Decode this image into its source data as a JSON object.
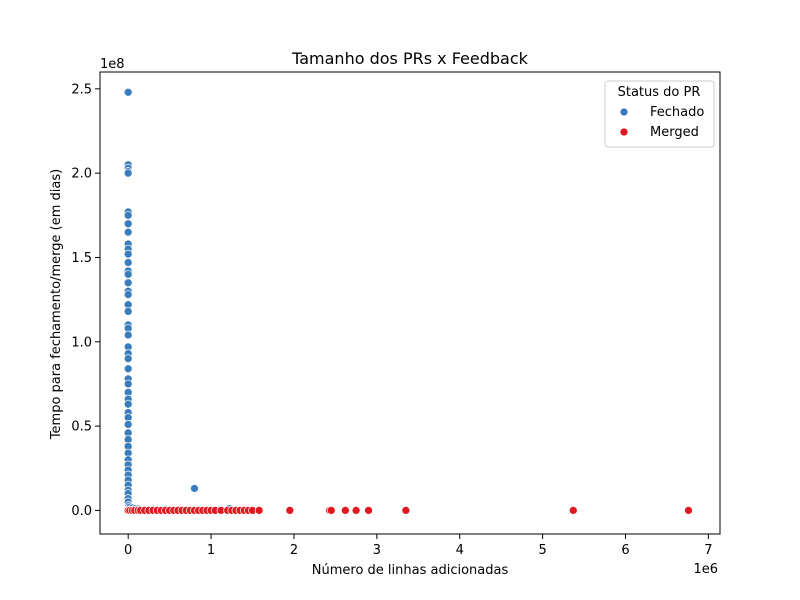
{
  "chart_data": {
    "type": "scatter",
    "title": "Tamanho dos PRs x Feedback",
    "xlabel": "Número de linhas adicionadas",
    "ylabel": "Tempo para fechamento/merge (em dias)",
    "x_multiplier": "1e6",
    "y_multiplier": "1e8",
    "xlim": [
      -0.34,
      7.14
    ],
    "ylim": [
      -0.14,
      2.6
    ],
    "x_ticks": [
      0,
      1,
      2,
      3,
      4,
      5,
      6,
      7
    ],
    "x_tick_labels": [
      "0",
      "1",
      "2",
      "3",
      "4",
      "5",
      "6",
      "7"
    ],
    "y_ticks": [
      0,
      0.5,
      1.0,
      1.5,
      2.0,
      2.5
    ],
    "y_tick_labels": [
      "0.0",
      "0.5",
      "1.0",
      "1.5",
      "2.0",
      "2.5"
    ],
    "grid": false,
    "legend": {
      "title": "Status do PR",
      "position": "top-right",
      "entries": [
        {
          "label": "Fechado",
          "color": "#3a7dbd"
        },
        {
          "label": "Merged",
          "color": "#e0191f"
        }
      ]
    },
    "series": [
      {
        "name": "Fechado",
        "color": "#3a7dbd",
        "points": [
          [
            0.0,
            2.48
          ],
          [
            0.0,
            2.05
          ],
          [
            0.0,
            2.03
          ],
          [
            0.0,
            2.01
          ],
          [
            0.0,
            2.0
          ],
          [
            0.0,
            1.77
          ],
          [
            0.0,
            1.75
          ],
          [
            0.0,
            1.7
          ],
          [
            0.0,
            1.65
          ],
          [
            0.0,
            1.58
          ],
          [
            0.0,
            1.55
          ],
          [
            0.0,
            1.52
          ],
          [
            0.0,
            1.47
          ],
          [
            0.0,
            1.42
          ],
          [
            0.0,
            1.4
          ],
          [
            0.0,
            1.35
          ],
          [
            0.0,
            1.3
          ],
          [
            0.0,
            1.28
          ],
          [
            0.0,
            1.22
          ],
          [
            0.0,
            1.18
          ],
          [
            0.0,
            1.1
          ],
          [
            0.0,
            1.08
          ],
          [
            0.0,
            1.04
          ],
          [
            0.0,
            0.97
          ],
          [
            0.0,
            0.93
          ],
          [
            0.0,
            0.9
          ],
          [
            0.0,
            0.84
          ],
          [
            0.0,
            0.78
          ],
          [
            0.0,
            0.75
          ],
          [
            0.0,
            0.7
          ],
          [
            0.0,
            0.66
          ],
          [
            0.0,
            0.63
          ],
          [
            0.0,
            0.58
          ],
          [
            0.0,
            0.55
          ],
          [
            0.0,
            0.51
          ],
          [
            0.0,
            0.46
          ],
          [
            0.0,
            0.42
          ],
          [
            0.0,
            0.38
          ],
          [
            0.0,
            0.34
          ],
          [
            0.0,
            0.3
          ],
          [
            0.0,
            0.27
          ],
          [
            0.0,
            0.24
          ],
          [
            0.0,
            0.21
          ],
          [
            0.0,
            0.18
          ],
          [
            0.0,
            0.15
          ],
          [
            0.0,
            0.12
          ],
          [
            0.0,
            0.1
          ],
          [
            0.0,
            0.07
          ],
          [
            0.0,
            0.05
          ],
          [
            0.01,
            0.03
          ],
          [
            0.02,
            0.02
          ],
          [
            0.05,
            0.015
          ],
          [
            0.08,
            0.01
          ],
          [
            0.12,
            0.008
          ],
          [
            0.2,
            0.005
          ],
          [
            0.3,
            0.005
          ],
          [
            0.45,
            0.006
          ],
          [
            0.8,
            0.13
          ],
          [
            1.22,
            0.01
          ]
        ]
      },
      {
        "name": "Merged",
        "color": "#e0191f",
        "points": [
          [
            0.0,
            0.0
          ],
          [
            0.02,
            0.0
          ],
          [
            0.05,
            0.0
          ],
          [
            0.08,
            0.0
          ],
          [
            0.12,
            0.0
          ],
          [
            0.15,
            0.0
          ],
          [
            0.2,
            0.0
          ],
          [
            0.25,
            0.0
          ],
          [
            0.3,
            0.0
          ],
          [
            0.35,
            0.0
          ],
          [
            0.4,
            0.0
          ],
          [
            0.45,
            0.0
          ],
          [
            0.5,
            0.0
          ],
          [
            0.55,
            0.0
          ],
          [
            0.6,
            0.0
          ],
          [
            0.65,
            0.0
          ],
          [
            0.7,
            0.0
          ],
          [
            0.75,
            0.0
          ],
          [
            0.8,
            0.0
          ],
          [
            0.85,
            0.0
          ],
          [
            0.9,
            0.0
          ],
          [
            0.95,
            0.0
          ],
          [
            1.0,
            0.0
          ],
          [
            1.05,
            0.0
          ],
          [
            1.12,
            0.0
          ],
          [
            1.2,
            0.0
          ],
          [
            1.25,
            0.0
          ],
          [
            1.3,
            0.0
          ],
          [
            1.35,
            0.0
          ],
          [
            1.4,
            0.0
          ],
          [
            1.45,
            0.0
          ],
          [
            1.5,
            0.0
          ],
          [
            1.58,
            0.0
          ],
          [
            1.95,
            0.0
          ],
          [
            2.43,
            0.0
          ],
          [
            2.45,
            0.0
          ],
          [
            2.62,
            0.0
          ],
          [
            2.75,
            0.0
          ],
          [
            2.9,
            0.0
          ],
          [
            3.35,
            0.0
          ],
          [
            5.37,
            0.0
          ],
          [
            6.76,
            0.0
          ]
        ]
      }
    ]
  }
}
